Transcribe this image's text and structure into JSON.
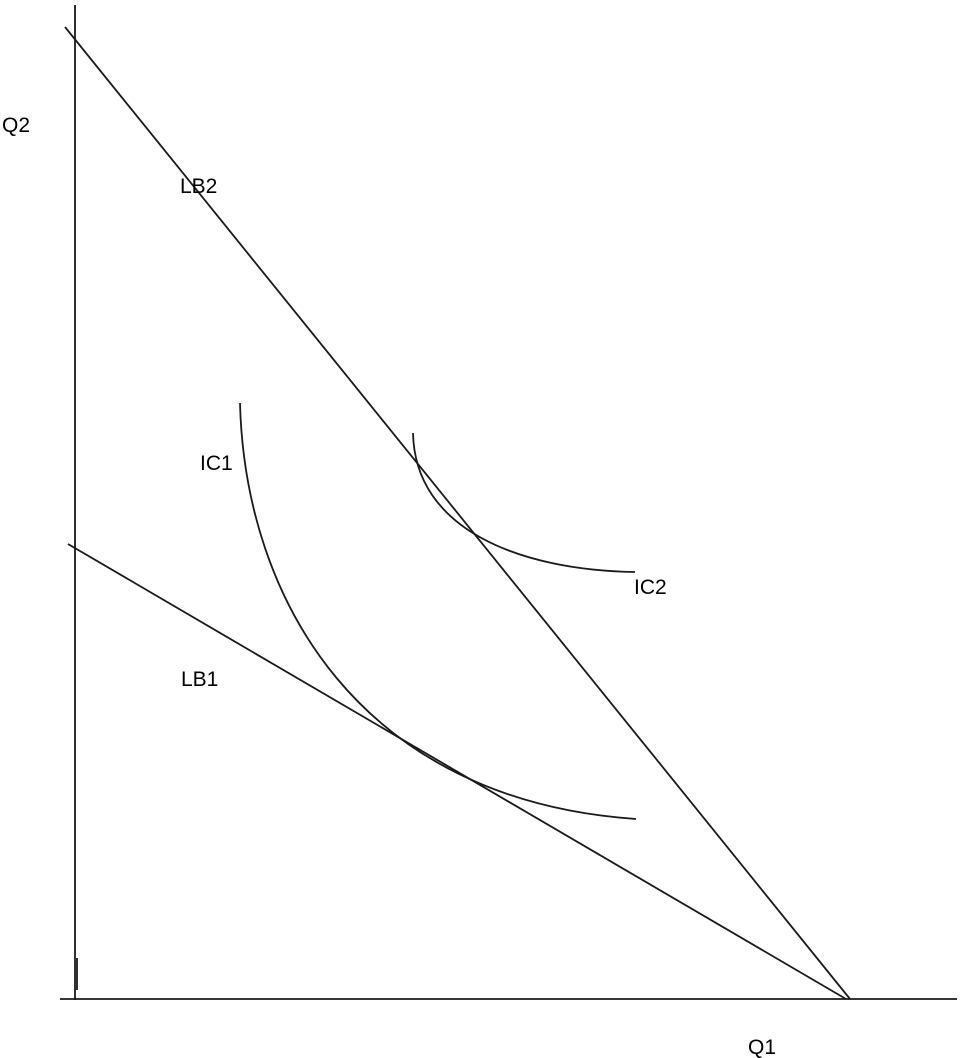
{
  "axes": {
    "y_label": "Q2",
    "x_label": "Q1"
  },
  "curves": {
    "budget_line_1": "LB1",
    "budget_line_2": "LB2",
    "indifference_curve_1": "IC1",
    "indifference_curve_2": "IC2"
  },
  "colors": {
    "line": "#1a1a1a",
    "background": "#ffffff"
  }
}
